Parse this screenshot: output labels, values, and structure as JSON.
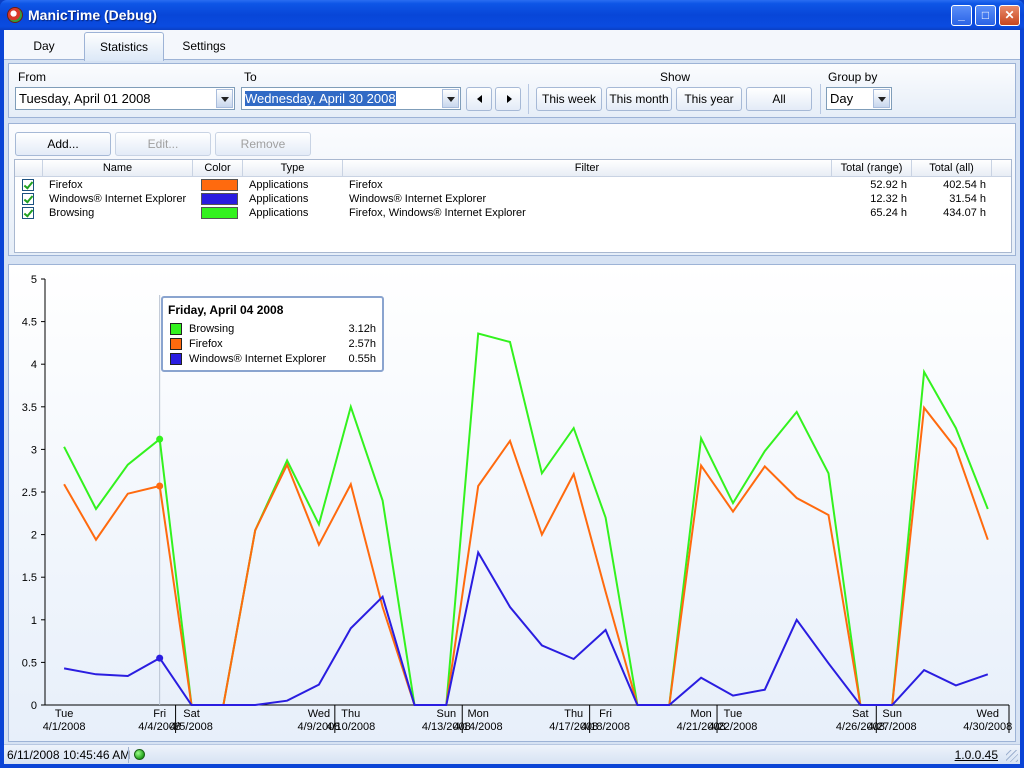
{
  "window": {
    "title": "ManicTime (Debug)",
    "controls": {
      "minimize": "_",
      "maximize": "□",
      "close": "✕"
    }
  },
  "tabs": [
    {
      "label": "Day",
      "active": false
    },
    {
      "label": "Statistics",
      "active": true
    },
    {
      "label": "Settings",
      "active": false
    }
  ],
  "filter": {
    "from_label": "From",
    "from_value": "Tuesday, April 01 2008",
    "to_label": "To",
    "to_value": "Wednesday, April 30 2008",
    "show_label": "Show",
    "show_buttons": [
      "This week",
      "This month",
      "This year",
      "All"
    ],
    "group_by_label": "Group by",
    "group_by_value": "Day"
  },
  "groups": {
    "buttons": {
      "add": "Add...",
      "edit": "Edit...",
      "remove": "Remove"
    },
    "columns": [
      "Name",
      "Color",
      "Type",
      "Filter",
      "Total (range)",
      "Total (all)"
    ],
    "rows": [
      {
        "checked": true,
        "name": "Firefox",
        "color": "#ff6a0e",
        "type": "Applications",
        "filter": "Firefox",
        "total_range": "52.92 h",
        "total_all": "402.54 h"
      },
      {
        "checked": true,
        "name": "Windows® Internet Explorer",
        "color": "#2a1de0",
        "type": "Applications",
        "filter": "Windows® Internet Explorer",
        "total_range": "12.32 h",
        "total_all": "31.54 h"
      },
      {
        "checked": true,
        "name": "Browsing",
        "color": "#33f21e",
        "type": "Applications",
        "filter": "Firefox, Windows® Internet Explorer",
        "total_range": "65.24 h",
        "total_all": "434.07 h"
      }
    ]
  },
  "tooltip": {
    "title": "Friday, April 04 2008",
    "rows": [
      {
        "name": "Browsing",
        "value": "3.12h",
        "color": "#33f21e"
      },
      {
        "name": "Firefox",
        "value": "2.57h",
        "color": "#ff6a0e"
      },
      {
        "name": "Windows® Internet Explorer",
        "value": "0.55h",
        "color": "#2a1de0"
      }
    ]
  },
  "chart_data": {
    "type": "line",
    "ylim": [
      0,
      5
    ],
    "y_ticks": [
      0,
      0.5,
      1,
      1.5,
      2,
      2.5,
      3,
      3.5,
      4,
      4.5,
      5
    ],
    "y_tick_labels": [
      "0",
      "0.5",
      "1",
      "1.5",
      "2",
      "2.5",
      "3",
      "3.5",
      "4",
      "4.5",
      "5"
    ],
    "x": [
      "2008-04-01",
      "2008-04-02",
      "2008-04-03",
      "2008-04-04",
      "2008-04-05",
      "2008-04-06",
      "2008-04-07",
      "2008-04-08",
      "2008-04-09",
      "2008-04-10",
      "2008-04-11",
      "2008-04-12",
      "2008-04-13",
      "2008-04-14",
      "2008-04-15",
      "2008-04-16",
      "2008-04-17",
      "2008-04-18",
      "2008-04-19",
      "2008-04-20",
      "2008-04-21",
      "2008-04-22",
      "2008-04-23",
      "2008-04-24",
      "2008-04-25",
      "2008-04-26",
      "2008-04-27",
      "2008-04-28",
      "2008-04-29",
      "2008-04-30"
    ],
    "x_tick_labels": [
      {
        "day": "Tue",
        "date": "4/1/2008",
        "index": 0
      },
      {
        "day": "Fri",
        "date": "4/4/2008",
        "index": 3
      },
      {
        "day": "Sat",
        "date": "4/5/2008",
        "index": 4
      },
      {
        "day": "Wed",
        "date": "4/9/2008",
        "index": 8
      },
      {
        "day": "Thu",
        "date": "4/10/2008",
        "index": 9
      },
      {
        "day": "Sun",
        "date": "4/13/2008",
        "index": 12
      },
      {
        "day": "Mon",
        "date": "4/14/2008",
        "index": 13
      },
      {
        "day": "Thu",
        "date": "4/17/2008",
        "index": 16
      },
      {
        "day": "Fri",
        "date": "4/18/2008",
        "index": 17
      },
      {
        "day": "Mon",
        "date": "4/21/2008",
        "index": 20
      },
      {
        "day": "Tue",
        "date": "4/22/2008",
        "index": 21
      },
      {
        "day": "Sat",
        "date": "4/26/2008",
        "index": 25
      },
      {
        "day": "Sun",
        "date": "4/27/2008",
        "index": 26
      },
      {
        "day": "Wed",
        "date": "4/30/2008",
        "index": 29
      }
    ],
    "week_separators": [
      3.5,
      8.5,
      12.5,
      16.5,
      20.5,
      25.5
    ],
    "hover_index": 3,
    "series": [
      {
        "name": "Browsing",
        "color": "#33f21e",
        "values": [
          3.03,
          2.3,
          2.82,
          3.12,
          0,
          0,
          2.05,
          2.87,
          2.12,
          3.5,
          2.4,
          0,
          0,
          4.36,
          4.26,
          2.72,
          3.25,
          2.2,
          0,
          0,
          3.13,
          2.37,
          2.98,
          3.44,
          2.72,
          0,
          0,
          3.91,
          3.25,
          2.3
        ]
      },
      {
        "name": "Firefox",
        "color": "#ff6a0e",
        "values": [
          2.59,
          1.94,
          2.48,
          2.57,
          0,
          0,
          2.05,
          2.82,
          1.88,
          2.59,
          1.15,
          0,
          0,
          2.57,
          3.1,
          2.0,
          2.71,
          1.33,
          0,
          0,
          2.81,
          2.27,
          2.8,
          2.43,
          2.23,
          0,
          0,
          3.49,
          3.01,
          1.94
        ]
      },
      {
        "name": "Windows® Internet Explorer",
        "color": "#2a1de0",
        "values": [
          0.43,
          0.36,
          0.34,
          0.55,
          0,
          0,
          0,
          0.05,
          0.24,
          0.9,
          1.27,
          0,
          0,
          1.79,
          1.15,
          0.7,
          0.54,
          0.88,
          0,
          0,
          0.32,
          0.11,
          0.18,
          1.0,
          0.49,
          0,
          0,
          0.41,
          0.23,
          0.36
        ]
      }
    ]
  },
  "status": {
    "datetime": "6/11/2008 10:45:46 AM",
    "version": "1.0.0.45"
  }
}
